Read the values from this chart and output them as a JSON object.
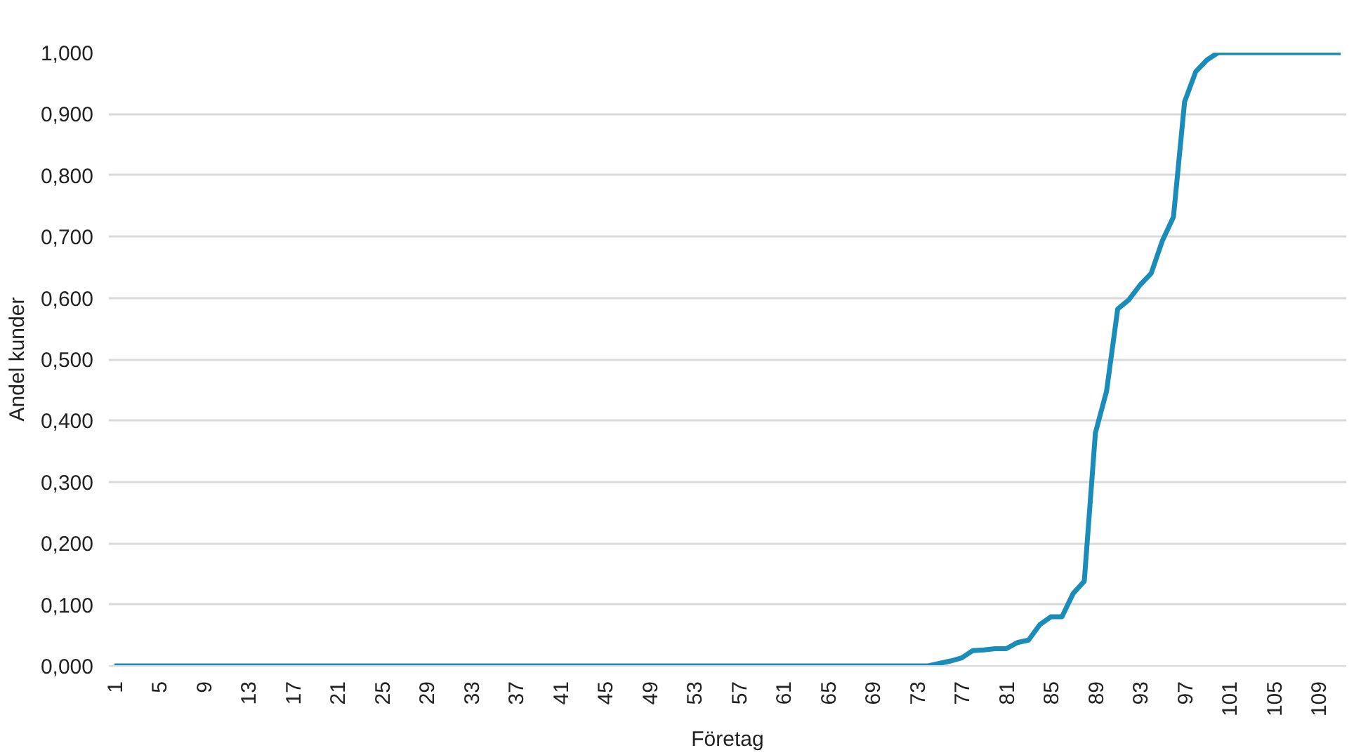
{
  "chart_data": {
    "type": "line",
    "xlabel": "Företag",
    "ylabel": "Andel kunder",
    "categories": [
      "1",
      null,
      null,
      null,
      "5",
      null,
      null,
      null,
      "9",
      null,
      null,
      null,
      "13",
      null,
      null,
      null,
      "17",
      null,
      null,
      null,
      "21",
      null,
      null,
      null,
      "25",
      null,
      null,
      null,
      "29",
      null,
      null,
      null,
      "33",
      null,
      null,
      null,
      "37",
      null,
      null,
      null,
      "41",
      null,
      null,
      null,
      "45",
      null,
      null,
      null,
      "49",
      null,
      null,
      null,
      "53",
      null,
      null,
      null,
      "57",
      null,
      null,
      null,
      "61",
      null,
      null,
      null,
      "65",
      null,
      null,
      null,
      "69",
      null,
      null,
      null,
      "73",
      null,
      null,
      null,
      "77",
      null,
      null,
      null,
      "81",
      null,
      null,
      null,
      "85",
      null,
      null,
      null,
      "89",
      null,
      null,
      null,
      "93",
      null,
      null,
      null,
      "97",
      null,
      null,
      null,
      "101",
      null,
      null,
      null,
      "105",
      null,
      null,
      null,
      "109",
      null,
      null
    ],
    "series": [
      {
        "color": "#1a8cba",
        "values": [
          0,
          0,
          0,
          0,
          0,
          0,
          0,
          0,
          0,
          0,
          0,
          0,
          0,
          0,
          0,
          0,
          0,
          0,
          0,
          0,
          0,
          0,
          0,
          0,
          0,
          0,
          0,
          0,
          0,
          0,
          0,
          0,
          0,
          0,
          0,
          0,
          0,
          0,
          0,
          0,
          0,
          0,
          0,
          0,
          0,
          0,
          0,
          0,
          0,
          0,
          0,
          0,
          0,
          0,
          0,
          0,
          0,
          0,
          0,
          0,
          0,
          0,
          0,
          0,
          0,
          0,
          0,
          0,
          0,
          0,
          0,
          0,
          0,
          0,
          0.004,
          0.008,
          0.013,
          0.025,
          0.026,
          0.028,
          0.028,
          0.038,
          0.042,
          0.067,
          0.08,
          0.08,
          0.118,
          0.138,
          0.38,
          0.448,
          0.582,
          0.597,
          0.621,
          0.64,
          0.693,
          0.732,
          0.92,
          0.969,
          0.988,
          1,
          1,
          1,
          1,
          1,
          1,
          1,
          1,
          1,
          1,
          1,
          1
        ]
      }
    ],
    "ylim": [
      0,
      1
    ],
    "yticks": [
      {
        "value": 0,
        "label": "0,000"
      },
      {
        "value": 0.1,
        "label": "0,100"
      },
      {
        "value": 0.2,
        "label": "0,200"
      },
      {
        "value": 0.3,
        "label": "0,300"
      },
      {
        "value": 0.4,
        "label": "0,400"
      },
      {
        "value": 0.5,
        "label": "0,500"
      },
      {
        "value": 0.6,
        "label": "0,600"
      },
      {
        "value": 0.7,
        "label": "0,700"
      },
      {
        "value": 0.8,
        "label": "0,800"
      },
      {
        "value": 0.9,
        "label": "0,900"
      },
      {
        "value": 1,
        "label": "1,000"
      }
    ],
    "grid": "y",
    "marker": "none",
    "line_style": "solid"
  }
}
